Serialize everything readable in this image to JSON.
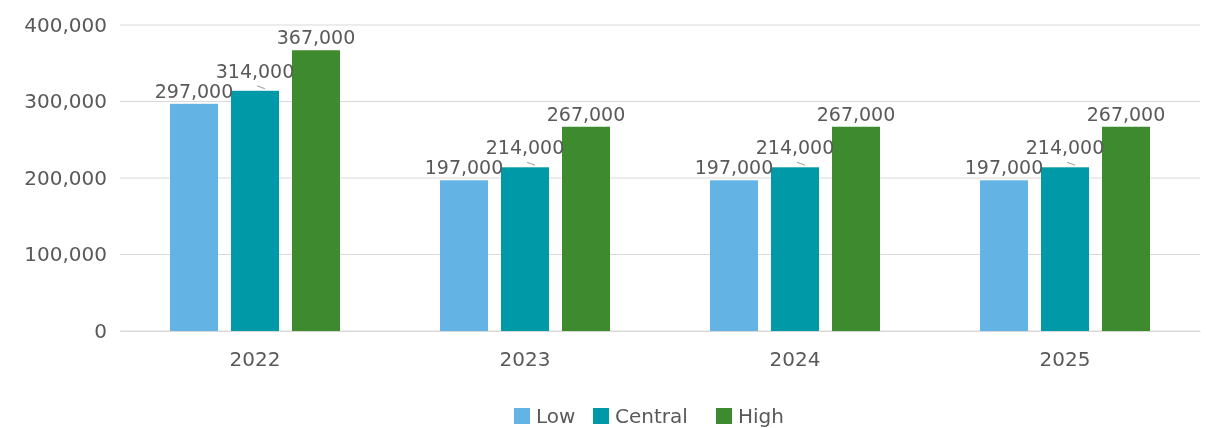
{
  "chart_data": {
    "type": "bar",
    "categories": [
      "2022",
      "2023",
      "2024",
      "2025"
    ],
    "series": [
      {
        "name": "Low",
        "color": "#63b4e4",
        "values": [
          297000,
          197000,
          197000,
          197000
        ],
        "value_labels": [
          "297,000",
          "197,000",
          "197,000",
          "197,000"
        ]
      },
      {
        "name": "Central",
        "color": "#0099a8",
        "values": [
          314000,
          214000,
          214000,
          214000
        ],
        "value_labels": [
          "314,000",
          "214,000",
          "214,000",
          "214,000"
        ]
      },
      {
        "name": "High",
        "color": "#3e8a2f",
        "values": [
          367000,
          267000,
          267000,
          267000
        ],
        "value_labels": [
          "367,000",
          "267,000",
          "267,000",
          "267,000"
        ]
      }
    ],
    "ylim": [
      0,
      400000
    ],
    "yticks": [
      0,
      {
        "value": 100000,
        "label": "100,000"
      },
      {
        "value": 200000,
        "label": "200,000"
      },
      {
        "value": 300000,
        "label": "300,000"
      },
      {
        "value": 400000,
        "label": "400,000"
      }
    ],
    "grid": "y",
    "legend": "bottom"
  }
}
